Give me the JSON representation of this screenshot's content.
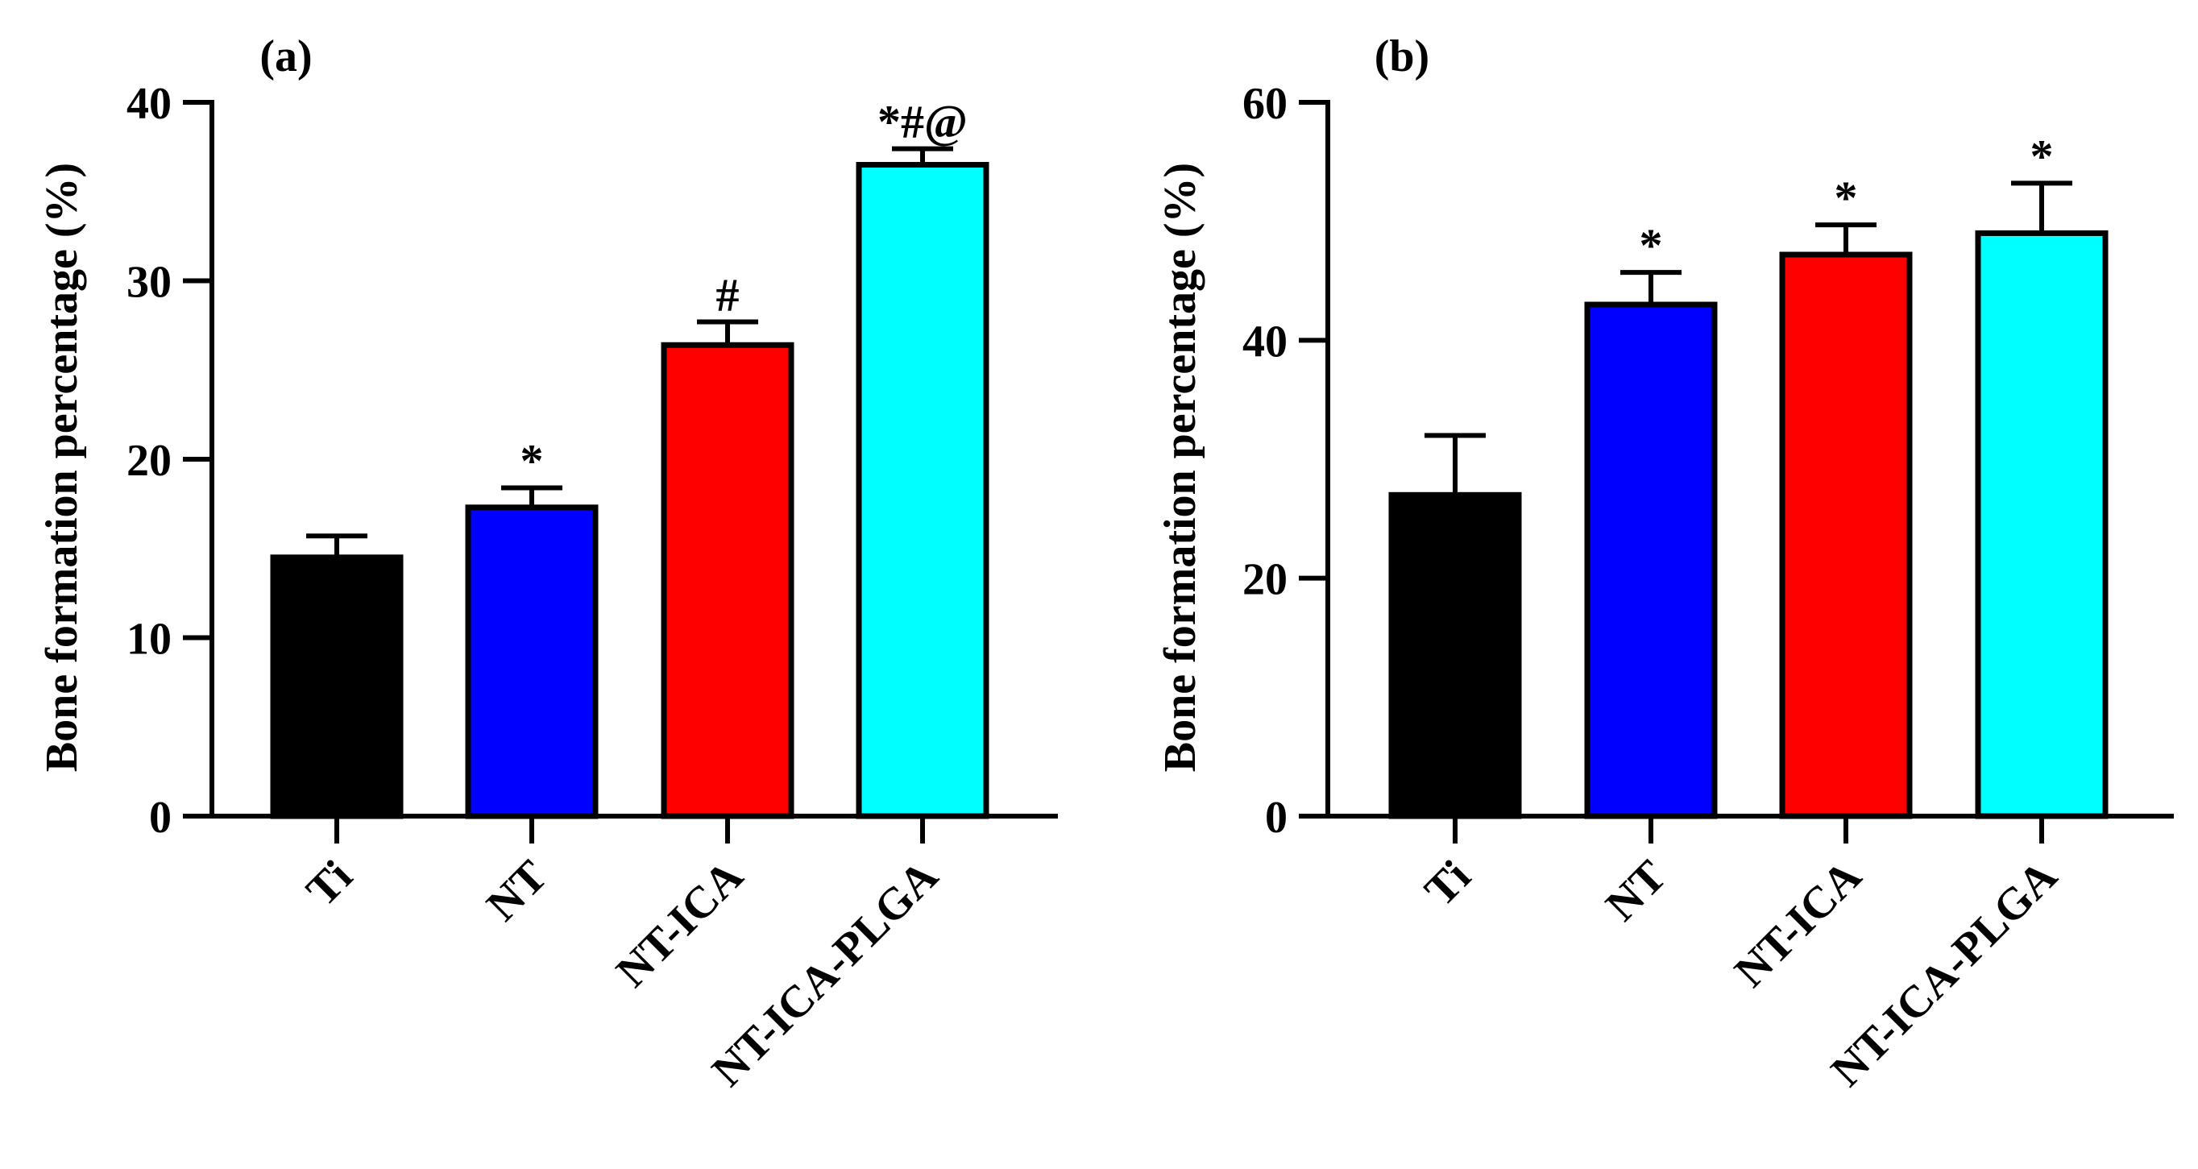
{
  "chart_data": [
    {
      "type": "bar",
      "panel_label": "(a)",
      "title": "",
      "xlabel": "",
      "ylabel": "Bone formation percentage (%)",
      "ylim": [
        0,
        40
      ],
      "yticks": [
        "0",
        "10",
        "20",
        "30",
        "40"
      ],
      "categories": [
        "Ti",
        "NT",
        "NT-ICA",
        "NT-ICA-PLGA"
      ],
      "values": [
        14.5,
        17.3,
        26.4,
        36.5
      ],
      "errors": [
        1.2,
        1.1,
        1.3,
        0.9
      ],
      "colors": [
        "#000000",
        "#0000FF",
        "#FF0000",
        "#00FFFF"
      ],
      "annotations": [
        "",
        "*",
        "#",
        "*#@"
      ],
      "grid": false,
      "legend": "none"
    },
    {
      "type": "bar",
      "panel_label": "(b)",
      "title": "",
      "xlabel": "",
      "ylabel": "Bone formation percentage (%)",
      "ylim": [
        0,
        60
      ],
      "yticks": [
        "0",
        "20",
        "40",
        "60"
      ],
      "categories": [
        "Ti",
        "NT",
        "NT-ICA",
        "NT-ICA-PLGA"
      ],
      "values": [
        27.0,
        43.0,
        47.2,
        49.0
      ],
      "errors": [
        5.0,
        2.7,
        2.5,
        4.2
      ],
      "colors": [
        "#000000",
        "#0000FF",
        "#FF0000",
        "#00FFFF"
      ],
      "annotations": [
        "",
        "*",
        "*",
        "*"
      ],
      "grid": false,
      "legend": "none"
    }
  ]
}
